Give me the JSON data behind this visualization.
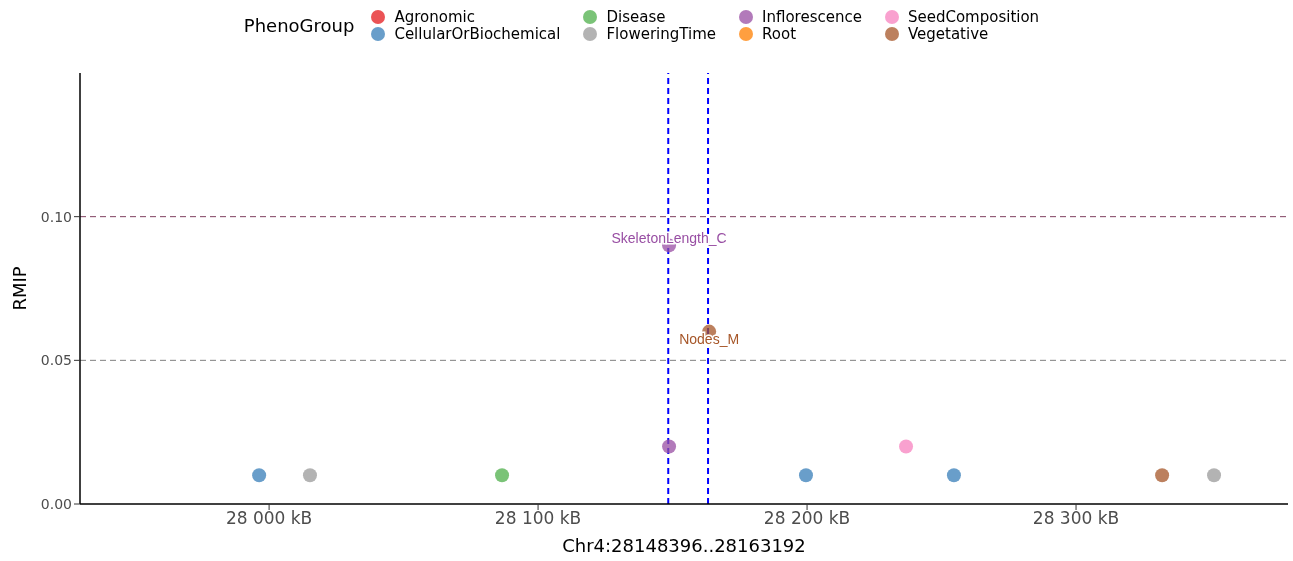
{
  "chart_data": {
    "type": "scatter",
    "xlabel": "Chr4:28148396..28163192",
    "ylabel": "RMIP",
    "legend_title": "PhenoGroup",
    "legend": "top",
    "grid": false,
    "marker": "circle",
    "xlim": [
      27929.7,
      28378.8
    ],
    "xticks": [
      {
        "value": 28000,
        "label": "28 000 kB"
      },
      {
        "value": 28100,
        "label": "28 100 kB"
      },
      {
        "value": 28200,
        "label": "28 200 kB"
      },
      {
        "value": 28300,
        "label": "28 300 kB"
      }
    ],
    "ylim": [
      0,
      0.15
    ],
    "yticks": [
      {
        "value": 0,
        "label": "0.00"
      },
      {
        "value": 0.05,
        "label": "0.05"
      },
      {
        "value": 0.1,
        "label": "0.10"
      }
    ],
    "series": [
      {
        "name": "Agronomic",
        "color": "#e41a1c"
      },
      {
        "name": "CellularOrBiochemical",
        "color": "#377eb8",
        "x": [
          27996.3,
          28199.6,
          28254.6
        ],
        "values": [
          0.01,
          0.01,
          0.01
        ]
      },
      {
        "name": "Disease",
        "color": "#4daf4a",
        "x": [
          28086.6
        ],
        "values": [
          0.01
        ]
      },
      {
        "name": "FloweringTime",
        "color": "#999999",
        "x": [
          28015.2,
          28351.3
        ],
        "values": [
          0.01,
          0.01
        ]
      },
      {
        "name": "Inflorescence",
        "color": "#984ea3",
        "x": [
          28148.7,
          28148.7
        ],
        "values": [
          0.02,
          0.09
        ]
      },
      {
        "name": "Root",
        "color": "#ff7f00"
      },
      {
        "name": "SeedComposition",
        "color": "#f781bf",
        "x": [
          28236.8
        ],
        "values": [
          0.02
        ]
      },
      {
        "name": "Vegetative",
        "color": "#a65628",
        "x": [
          28163.6,
          28332.0
        ],
        "values": [
          0.06,
          0.01
        ]
      }
    ],
    "ref_lines": [
      {
        "axis": "y",
        "value": 0.1,
        "color": "#7f3f5f",
        "line_style": "dashed"
      },
      {
        "axis": "y",
        "value": 0.05,
        "color": "#808080",
        "line_style": "dashed"
      },
      {
        "axis": "x",
        "value": 28148.396,
        "color": "#0000ff",
        "line_style": "dashed"
      },
      {
        "axis": "x",
        "value": 28163.192,
        "color": "#0000ff",
        "line_style": "dashed"
      }
    ],
    "annotations": [
      {
        "text": "SkeletonLength_C",
        "x": 28148.7,
        "y": 0.09
      },
      {
        "text": "Nodes_M",
        "x": 28163.6,
        "y": 0.06
      }
    ]
  }
}
